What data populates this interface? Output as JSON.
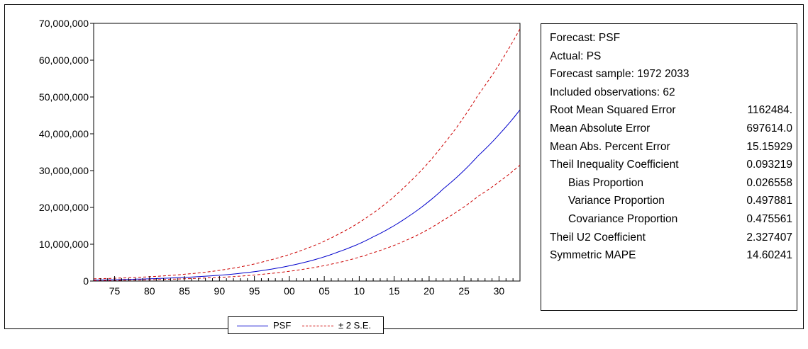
{
  "chart_data": {
    "type": "line",
    "title": "",
    "xlabel": "",
    "ylabel": "",
    "x_tick_labels": [
      "75",
      "80",
      "85",
      "90",
      "95",
      "00",
      "05",
      "10",
      "15",
      "20",
      "25",
      "30"
    ],
    "x_tick_years": [
      1975,
      1980,
      1985,
      1990,
      1995,
      2000,
      2005,
      2010,
      2015,
      2020,
      2025,
      2030
    ],
    "xlim": [
      1972,
      2033
    ],
    "ylim": [
      0,
      70000000
    ],
    "y_tick_labels": [
      "0",
      "10,000,000",
      "20,000,000",
      "30,000,000",
      "40,000,000",
      "50,000,000",
      "60,000,000",
      "70,000,000"
    ],
    "y_tick_values": [
      0,
      10000000,
      20000000,
      30000000,
      40000000,
      50000000,
      60000000,
      70000000
    ],
    "grid": false,
    "legend_position": "bottom-center",
    "x": [
      1972,
      1977,
      1982,
      1987,
      1992,
      1997,
      2002,
      2007,
      2012,
      2017,
      2022,
      2027,
      2033
    ],
    "series": [
      {
        "name": "PSF",
        "color": "#0000cc",
        "style": "solid",
        "values": [
          250000,
          450000,
          750000,
          1200000,
          1900000,
          3100000,
          5000000,
          7900000,
          12000000,
          17500000,
          25000000,
          34000000,
          46500000
        ]
      },
      {
        "name": "± 2 S.E.",
        "color": "#cc0000",
        "style": "dashed",
        "values": [
          600000,
          900000,
          1400000,
          2200000,
          3500000,
          5600000,
          8500000,
          12700000,
          18500000,
          26500000,
          37000000,
          50500000,
          68500000
        ]
      },
      {
        "name": "",
        "color": "#cc0000",
        "style": "dashed",
        "values": [
          100000,
          250000,
          450000,
          750000,
          1200000,
          2000000,
          3200000,
          5000000,
          7700000,
          11300000,
          16500000,
          23000000,
          31500000
        ]
      }
    ]
  },
  "stats": [
    {
      "label": "Forecast: PSF",
      "value": ""
    },
    {
      "label": "Actual: PS",
      "value": ""
    },
    {
      "label": "Forecast sample: 1972 2033",
      "value": ""
    },
    {
      "label": "Included observations: 62",
      "value": ""
    },
    {
      "label": "Root Mean Squared Error",
      "value": "1162484."
    },
    {
      "label": "Mean Absolute Error",
      "value": "697614.0"
    },
    {
      "label": "Mean Abs. Percent Error",
      "value": "15.15929"
    },
    {
      "label": "Theil Inequality Coefficient",
      "value": "0.093219"
    },
    {
      "label": "Bias Proportion",
      "value": "0.026558",
      "indent": true
    },
    {
      "label": "Variance Proportion",
      "value": "0.497881",
      "indent": true
    },
    {
      "label": "Covariance Proportion",
      "value": "0.475561",
      "indent": true
    },
    {
      "label": "Theil U2 Coefficient",
      "value": "2.327407"
    },
    {
      "label": "Symmetric MAPE",
      "value": "14.60241"
    }
  ],
  "legend": {
    "psf_label": "PSF",
    "se_label": "± 2 S.E."
  }
}
